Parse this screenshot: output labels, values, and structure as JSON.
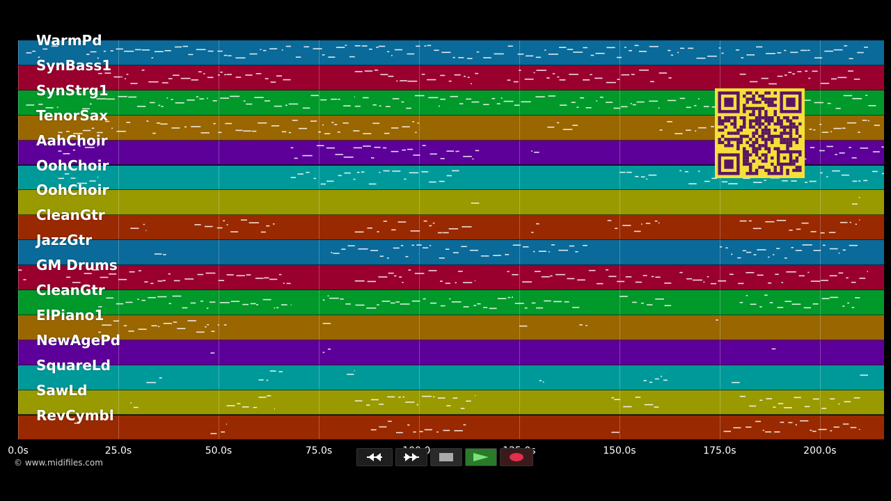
{
  "tracks": [
    {
      "name": "WarmPd",
      "color": "#0a6a99"
    },
    {
      "name": "SynBass1",
      "color": "#99002e"
    },
    {
      "name": "SynStrg1",
      "color": "#00992a"
    },
    {
      "name": "TenorSax",
      "color": "#996600"
    },
    {
      "name": "AahChoir",
      "color": "#5c0099"
    },
    {
      "name": "OohChoir",
      "color": "#009999"
    },
    {
      "name": "OohChoir",
      "color": "#999900"
    },
    {
      "name": "CleanGtr",
      "color": "#992900"
    },
    {
      "name": "JazzGtr",
      "color": "#0a6a99"
    },
    {
      "name": "GM Drums",
      "color": "#99002e"
    },
    {
      "name": "CleanGtr",
      "color": "#00992a"
    },
    {
      "name": "ElPiano1",
      "color": "#996600"
    },
    {
      "name": "NewAgePd",
      "color": "#5c0099"
    },
    {
      "name": "SquareLd",
      "color": "#009999"
    },
    {
      "name": "SawLd",
      "color": "#999900"
    },
    {
      "name": "RevCymbl",
      "color": "#992900"
    }
  ],
  "timeline": {
    "unit": "s",
    "tick_values": [
      0,
      25,
      50,
      75,
      100,
      125,
      150,
      175,
      200
    ],
    "tick_labels": [
      "0.0s",
      "25.0s",
      "50.0s",
      "75.0s",
      "100.0s",
      "125.0s",
      "150.0s",
      "175.0s",
      "200.0s"
    ],
    "max_seconds": 216
  },
  "copyright": "© www.midifiles.com",
  "transport": {
    "rewind_icon": "rewind-icon",
    "fast_forward_icon": "fast-forward-icon",
    "stop_icon": "stop-icon",
    "play_icon": "play-icon",
    "record_icon": "record-icon",
    "play_color": "#2a7a2a",
    "record_color": "#e0304a"
  },
  "qr_colors": {
    "fg": "#5a1463",
    "bg": "#f5e03a"
  }
}
